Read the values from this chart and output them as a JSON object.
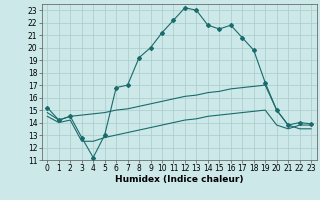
{
  "title": "",
  "xlabel": "Humidex (Indice chaleur)",
  "ylabel": "",
  "bg_color": "#cce8e8",
  "grid_color": "#aacccc",
  "line_color": "#1a6b6b",
  "xlim": [
    -0.5,
    23.5
  ],
  "ylim": [
    11,
    23.5
  ],
  "yticks": [
    11,
    12,
    13,
    14,
    15,
    16,
    17,
    18,
    19,
    20,
    21,
    22,
    23
  ],
  "xticks": [
    0,
    1,
    2,
    3,
    4,
    5,
    6,
    7,
    8,
    9,
    10,
    11,
    12,
    13,
    14,
    15,
    16,
    17,
    18,
    19,
    20,
    21,
    22,
    23
  ],
  "line1_x": [
    0,
    1,
    2,
    3,
    4,
    5,
    6,
    7,
    8,
    9,
    10,
    11,
    12,
    13,
    14,
    15,
    16,
    17,
    18,
    19,
    20,
    21,
    22,
    23
  ],
  "line1_y": [
    15.2,
    14.2,
    14.5,
    12.8,
    11.2,
    13.0,
    16.8,
    17.0,
    19.2,
    20.0,
    21.2,
    22.2,
    23.2,
    23.0,
    21.8,
    21.5,
    21.8,
    20.8,
    19.8,
    17.2,
    15.0,
    13.8,
    14.0,
    13.9
  ],
  "line2_x": [
    0,
    1,
    2,
    3,
    4,
    5,
    6,
    7,
    8,
    9,
    10,
    11,
    12,
    13,
    14,
    15,
    16,
    17,
    18,
    19,
    20,
    21,
    22,
    23
  ],
  "line2_y": [
    14.8,
    14.2,
    14.5,
    14.6,
    14.7,
    14.8,
    15.0,
    15.1,
    15.3,
    15.5,
    15.7,
    15.9,
    16.1,
    16.2,
    16.4,
    16.5,
    16.7,
    16.8,
    16.9,
    17.0,
    15.0,
    13.8,
    13.5,
    13.5
  ],
  "line3_x": [
    0,
    1,
    2,
    3,
    4,
    5,
    6,
    7,
    8,
    9,
    10,
    11,
    12,
    13,
    14,
    15,
    16,
    17,
    18,
    19,
    20,
    21,
    22,
    23
  ],
  "line3_y": [
    14.5,
    14.0,
    14.2,
    12.5,
    12.5,
    12.8,
    13.0,
    13.2,
    13.4,
    13.6,
    13.8,
    14.0,
    14.2,
    14.3,
    14.5,
    14.6,
    14.7,
    14.8,
    14.9,
    15.0,
    13.8,
    13.5,
    13.8,
    13.8
  ],
  "tick_fontsize": 5.5,
  "xlabel_fontsize": 6.5
}
